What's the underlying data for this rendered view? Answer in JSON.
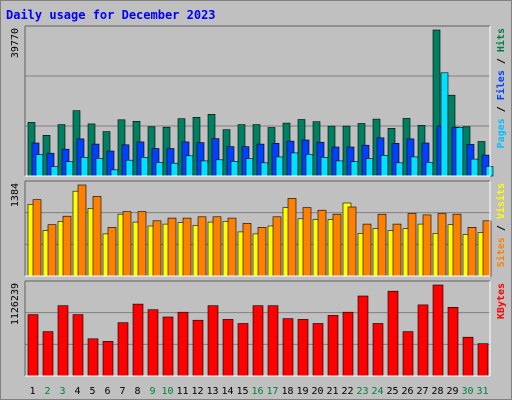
{
  "chart_data": {
    "type": "bar",
    "title": "Daily usage for December 2023",
    "categories": [
      "1",
      "2",
      "3",
      "4",
      "5",
      "6",
      "7",
      "8",
      "9",
      "10",
      "11",
      "12",
      "13",
      "14",
      "15",
      "16",
      "17",
      "18",
      "19",
      "20",
      "21",
      "22",
      "23",
      "24",
      "25",
      "26",
      "27",
      "28",
      "29",
      "30",
      "31"
    ],
    "weekend_day_color": "#008040",
    "weekday_day_color": "#000000",
    "weekend_days": [
      "2",
      "3",
      "9",
      "10",
      "16",
      "17",
      "23",
      "24",
      "30",
      "31"
    ],
    "panels": [
      {
        "name": "hits-files-pages",
        "ymax_label": "39770",
        "ymax": 39770,
        "ylabel_parts": [
          {
            "text": "Pages",
            "color": "#00c0ff"
          },
          {
            "text": " / ",
            "color": "#000000"
          },
          {
            "text": "Files",
            "color": "#0040ff"
          },
          {
            "text": " / ",
            "color": "#000000"
          },
          {
            "text": "Hits",
            "color": "#008040"
          }
        ],
        "series": [
          {
            "name": "Hits",
            "color": "#008060",
            "values": [
              14600,
              11100,
              14000,
              17800,
              14200,
              12100,
              15300,
              14900,
              13400,
              13300,
              15600,
              16000,
              16800,
              12600,
              14000,
              14000,
              13200,
              14400,
              15400,
              14800,
              13600,
              13600,
              14300,
              15500,
              13000,
              15700,
              13800,
              39770,
              22000,
              13400,
              9400
            ]
          },
          {
            "name": "Files",
            "color": "#0040ff",
            "values": [
              9000,
              6200,
              7300,
              10100,
              8700,
              6800,
              8500,
              9300,
              7500,
              7500,
              9300,
              9100,
              10200,
              8000,
              8000,
              8700,
              8900,
              9500,
              9800,
              9200,
              7900,
              7900,
              8400,
              10400,
              8900,
              10100,
              9000,
              13600,
              13300,
              8600,
              5700
            ]
          },
          {
            "name": "Pages",
            "color": "#00e0ff",
            "values": [
              5800,
              2600,
              3900,
              5100,
              4800,
              1700,
              4300,
              5100,
              3700,
              3500,
              5500,
              4100,
              4400,
              4000,
              4700,
              3600,
              5200,
              6300,
              5900,
              5100,
              4100,
              3900,
              4700,
              5600,
              3600,
              5200,
              3700,
              28100,
              13200,
              4600,
              2600
            ]
          }
        ]
      },
      {
        "name": "visits-sites",
        "ymax_label": "1384",
        "ymax": 1384,
        "ylabel_parts": [
          {
            "text": "Sites",
            "color": "#ff8000"
          },
          {
            "text": " / ",
            "color": "#000000"
          },
          {
            "text": "Visits",
            "color": "#ffff00"
          }
        ],
        "series": [
          {
            "name": "Visits",
            "color": "#ffff00",
            "values": [
              1090,
              690,
              830,
              1290,
              1030,
              640,
              940,
              820,
              760,
              790,
              810,
              770,
              820,
              830,
              670,
              640,
              760,
              1040,
              870,
              860,
              860,
              1110,
              650,
              720,
              690,
              720,
              790,
              650,
              780,
              630,
              660
            ]
          },
          {
            "name": "Sites",
            "color": "#ff8000",
            "values": [
              1160,
              780,
              910,
              1384,
              1210,
              740,
              980,
              980,
              840,
              880,
              880,
              900,
              900,
              880,
              800,
              740,
              900,
              1180,
              1040,
              1000,
              940,
              1050,
              790,
              940,
              790,
              950,
              930,
              950,
              940,
              740,
              840
            ]
          }
        ]
      },
      {
        "name": "kbytes",
        "ymax_label": "1126239",
        "ymax": 1126239,
        "ylabel_parts": [
          {
            "text": "KBytes",
            "color": "#ff0000"
          }
        ],
        "series": [
          {
            "name": "KBytes",
            "color": "#ff0000",
            "values": [
              760000,
              550000,
              870000,
              760000,
              460000,
              430000,
              660000,
              890000,
              820000,
              730000,
              790000,
              690000,
              870000,
              700000,
              650000,
              870000,
              870000,
              710000,
              700000,
              650000,
              750000,
              790000,
              990000,
              650000,
              1050000,
              550000,
              880000,
              1126239,
              850000,
              480000,
              400000
            ]
          }
        ]
      }
    ]
  }
}
